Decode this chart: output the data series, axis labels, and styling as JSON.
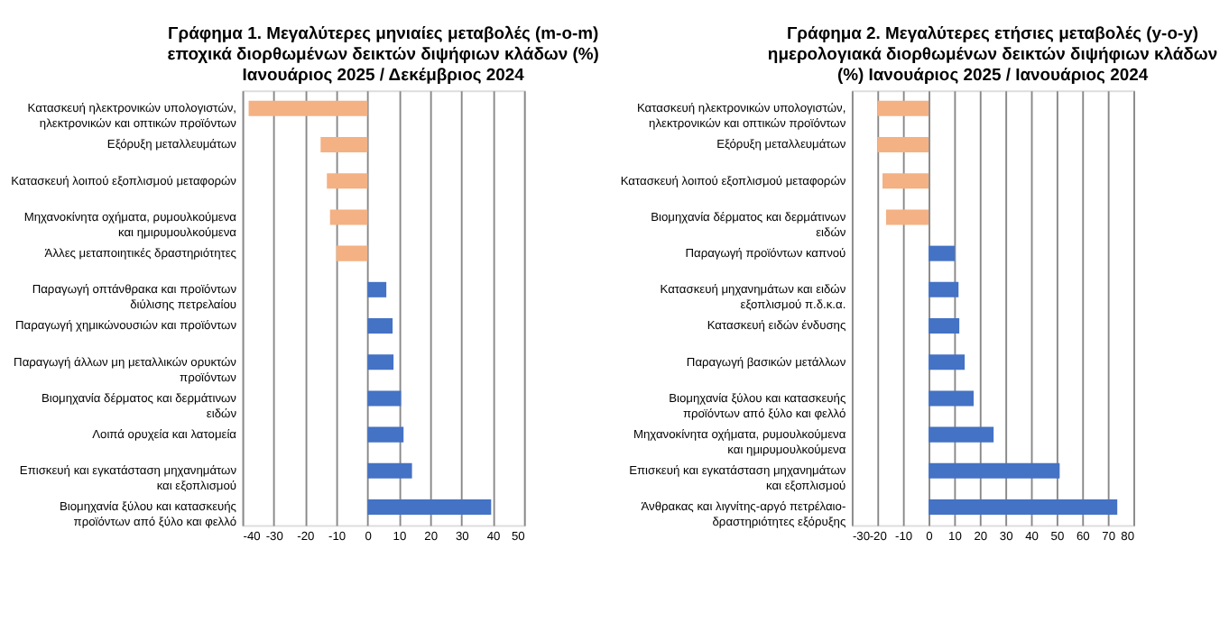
{
  "chart_data": [
    {
      "type": "bar",
      "orientation": "horizontal",
      "title": "Γράφημα 1. Μεγαλύτερες μηνιαίες μεταβολές (m-o-m) εποχικά διορθωμένων δεικτών διψήφιων κλάδων (%) Ιανουάριος 2025 / Δεκέμβριος 2024",
      "categories": [
        "Κατασκευή ηλεκτρονικών υπολογιστών, ηλεκτρονικών και οπτικών προϊόντων",
        "Εξόρυξη μεταλλευμάτων",
        "Κατασκευή λοιπού εξοπλισμού μεταφορών",
        "Μηχανοκίνητα οχήματα, ρυμουλκούμενα και ημιρυμουλκούμενα",
        "Άλλες μεταποιητικές δραστηριότητες",
        "Παραγωγή οπτάνθρακα και προϊόντων διύλισης πετρελαίου",
        "Παραγωγή χημικώνουσιών και προϊόντων",
        "Παραγωγή άλλων μη μεταλλικών ορυκτών προϊόντων",
        "Βιομηχανία δέρματος και δερμάτινων ειδών",
        "Λοιπά ορυχεία και λατομεία",
        "Επισκευή και εγκατάσταση μηχανημάτων και εξοπλισμού",
        "Βιομηχανία ξύλου και κατασκευής προϊόντων από ξύλο και φελλό"
      ],
      "values": [
        -38,
        -15,
        -13,
        -12,
        -10,
        6,
        8,
        8.3,
        10.7,
        11.5,
        14.2,
        39.5
      ],
      "colors": [
        "#f4b183",
        "#f4b183",
        "#f4b183",
        "#f4b183",
        "#f4b183",
        "#4472c4",
        "#4472c4",
        "#4472c4",
        "#4472c4",
        "#4472c4",
        "#4472c4",
        "#4472c4"
      ],
      "xlim": [
        -40,
        50
      ],
      "xticks": [
        -40,
        -30,
        -20,
        -10,
        0,
        10,
        20,
        30,
        40,
        50
      ],
      "grid": "x",
      "legend": false
    },
    {
      "type": "bar",
      "orientation": "horizontal",
      "title": "Γράφημα 2. Μεγαλύτερες ετήσιες μεταβολές (y-o-y) ημερολογιακά διορθωμένων δεικτών διψήφιων κλάδων (%) Ιανουάριος 2025 / Ιανουάριος 2024",
      "categories": [
        "Κατασκευή ηλεκτρονικών υπολογιστών, ηλεκτρονικών και οπτικών προϊόντων",
        "Εξόρυξη μεταλλευμάτων",
        "Κατασκευή λοιπού εξοπλισμού μεταφορών",
        "Βιομηχανία δέρματος και δερμάτινων ειδών",
        "Παραγωγή προϊόντων καπνού",
        "Κατασκευή μηχανημάτων και ειδών εξοπλισμού π.δ.κ.α.",
        "Κατασκευή ειδών ένδυσης",
        "Παραγωγή βασικών μετάλλων",
        "Βιομηχανία ξύλου και κατασκευής προϊόντων από ξύλο και φελλό",
        "Μηχανοκίνητα οχήματα, ρυμουλκούμενα και ημιρυμουλκούμενα",
        "Επισκευή και εγκατάσταση μηχανημάτων και εξοπλισμού",
        "Άνθρακας και λιγνίτης-αργό πετρέλαιο-δραστηριότητες εξόρυξης"
      ],
      "values": [
        -20,
        -20,
        -18,
        -16.6,
        10.2,
        11.7,
        12,
        14.1,
        17.6,
        25.4,
        51.2,
        73.7
      ],
      "colors": [
        "#f4b183",
        "#f4b183",
        "#f4b183",
        "#f4b183",
        "#4472c4",
        "#4472c4",
        "#4472c4",
        "#4472c4",
        "#4472c4",
        "#4472c4",
        "#4472c4",
        "#4472c4"
      ],
      "xlim": [
        -30,
        80
      ],
      "xticks": [
        -30,
        -20,
        -10,
        0,
        10,
        20,
        30,
        40,
        50,
        60,
        70,
        80
      ],
      "grid": "x",
      "legend": false
    }
  ]
}
